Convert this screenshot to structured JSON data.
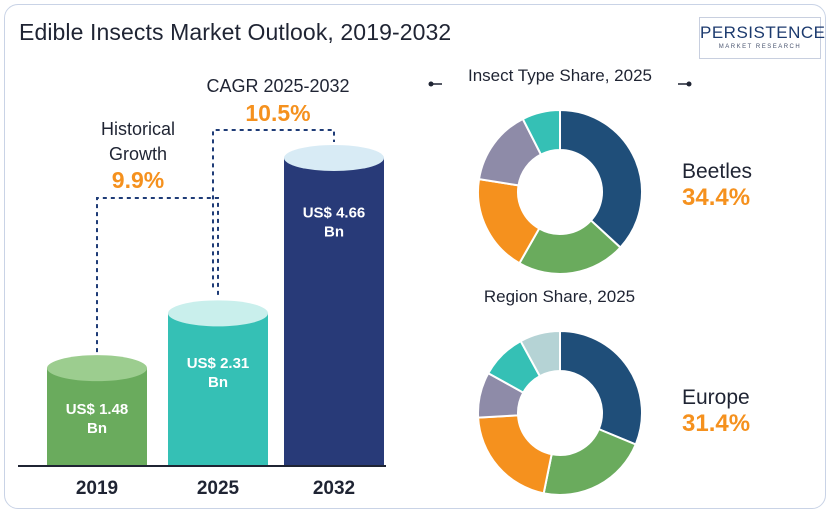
{
  "title": "Edible Insects Market Outlook, 2019-2032",
  "logo": {
    "main": "PERSISTENCE",
    "sub": "MARKET RESEARCH"
  },
  "colors": {
    "bar_2019": "#6aab5d",
    "bar_2019_top": "#9ccd8f",
    "bar_2025": "#35c0b5",
    "bar_2025_top": "#c9efec",
    "bar_2032": "#283a78",
    "bar_2032_top": "#d8ebf5",
    "accent": "#f5911e",
    "dark": "#1f2433"
  },
  "chart_data": [
    {
      "type": "bar",
      "title": "",
      "categories": [
        "2019",
        "2025",
        "2032"
      ],
      "values": [
        1.48,
        2.31,
        4.66
      ],
      "value_labels": [
        [
          "US$ 1.48",
          "Bn"
        ],
        [
          "US$ 2.31",
          "Bn"
        ],
        [
          "US$ 4.66",
          "Bn"
        ]
      ],
      "annotations": [
        {
          "label_lines": [
            "Historical",
            "Growth"
          ],
          "value": "9.9%"
        },
        {
          "label_lines": [
            "CAGR 2025-2032"
          ],
          "value": "10.5%"
        }
      ]
    },
    {
      "type": "pie",
      "title": "Insect Type Share, 2025",
      "highlight": {
        "name": "Beetles",
        "value": "34.4%"
      },
      "values": [
        34.4,
        20,
        18,
        14,
        7
      ],
      "slice_colors": [
        "#1f4e79",
        "#6aab5d",
        "#f5911e",
        "#8e8ba8",
        "#35c0b5"
      ],
      "slice_names": [
        "Beetles",
        "",
        "",
        "",
        ""
      ]
    },
    {
      "type": "pie",
      "title": "Region Share, 2025",
      "highlight": {
        "name": "Europe",
        "value": "31.4%"
      },
      "values": [
        31.4,
        22,
        21,
        9,
        9,
        8
      ],
      "slice_colors": [
        "#1f4e79",
        "#6aab5d",
        "#f5911e",
        "#8e8ba8",
        "#35c0b5",
        "#b5d3d5"
      ],
      "slice_names": [
        "Europe",
        "",
        "",
        "",
        "",
        ""
      ]
    }
  ]
}
